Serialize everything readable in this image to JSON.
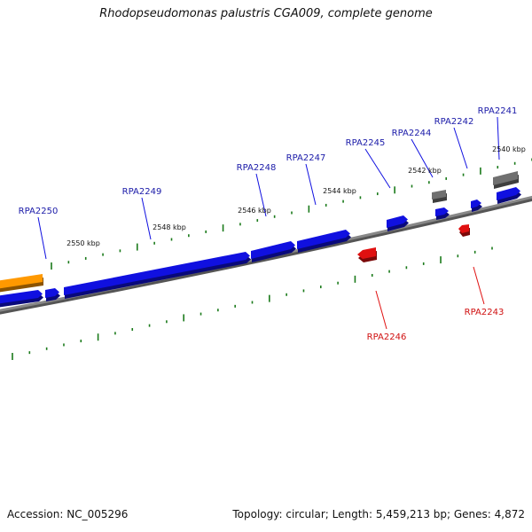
{
  "title": "Rhodopseudomonas palustris CGA009, complete genome",
  "footer": {
    "accession": "Accession: NC_005296",
    "topology": "Topology: circular; Length: 5,459,213 bp; Genes: 4,872"
  },
  "colors": {
    "forward_gene": "#1010e0",
    "reverse_gene": "#e01010",
    "other_gene": "#ff9900",
    "pseudogene": "#707070",
    "backbone": "#888888",
    "tick": "#1a7a1a",
    "forward_label": "#1a1aa8",
    "reverse_label": "#d01010"
  },
  "ruler_labels": [
    "2540 kbp",
    "2542 kbp",
    "2544 kbp",
    "2546 kbp",
    "2548 kbp",
    "2550 kbp"
  ],
  "genes": [
    {
      "name": "RPA2241",
      "strand": "forward"
    },
    {
      "name": "RPA2242",
      "strand": "forward"
    },
    {
      "name": "RPA2244",
      "strand": "forward"
    },
    {
      "name": "RPA2245",
      "strand": "forward"
    },
    {
      "name": "RPA2247",
      "strand": "forward"
    },
    {
      "name": "RPA2248",
      "strand": "forward"
    },
    {
      "name": "RPA2249",
      "strand": "forward"
    },
    {
      "name": "RPA2250",
      "strand": "forward"
    },
    {
      "name": "RPA2243",
      "strand": "reverse"
    },
    {
      "name": "RPA2246",
      "strand": "reverse"
    }
  ]
}
